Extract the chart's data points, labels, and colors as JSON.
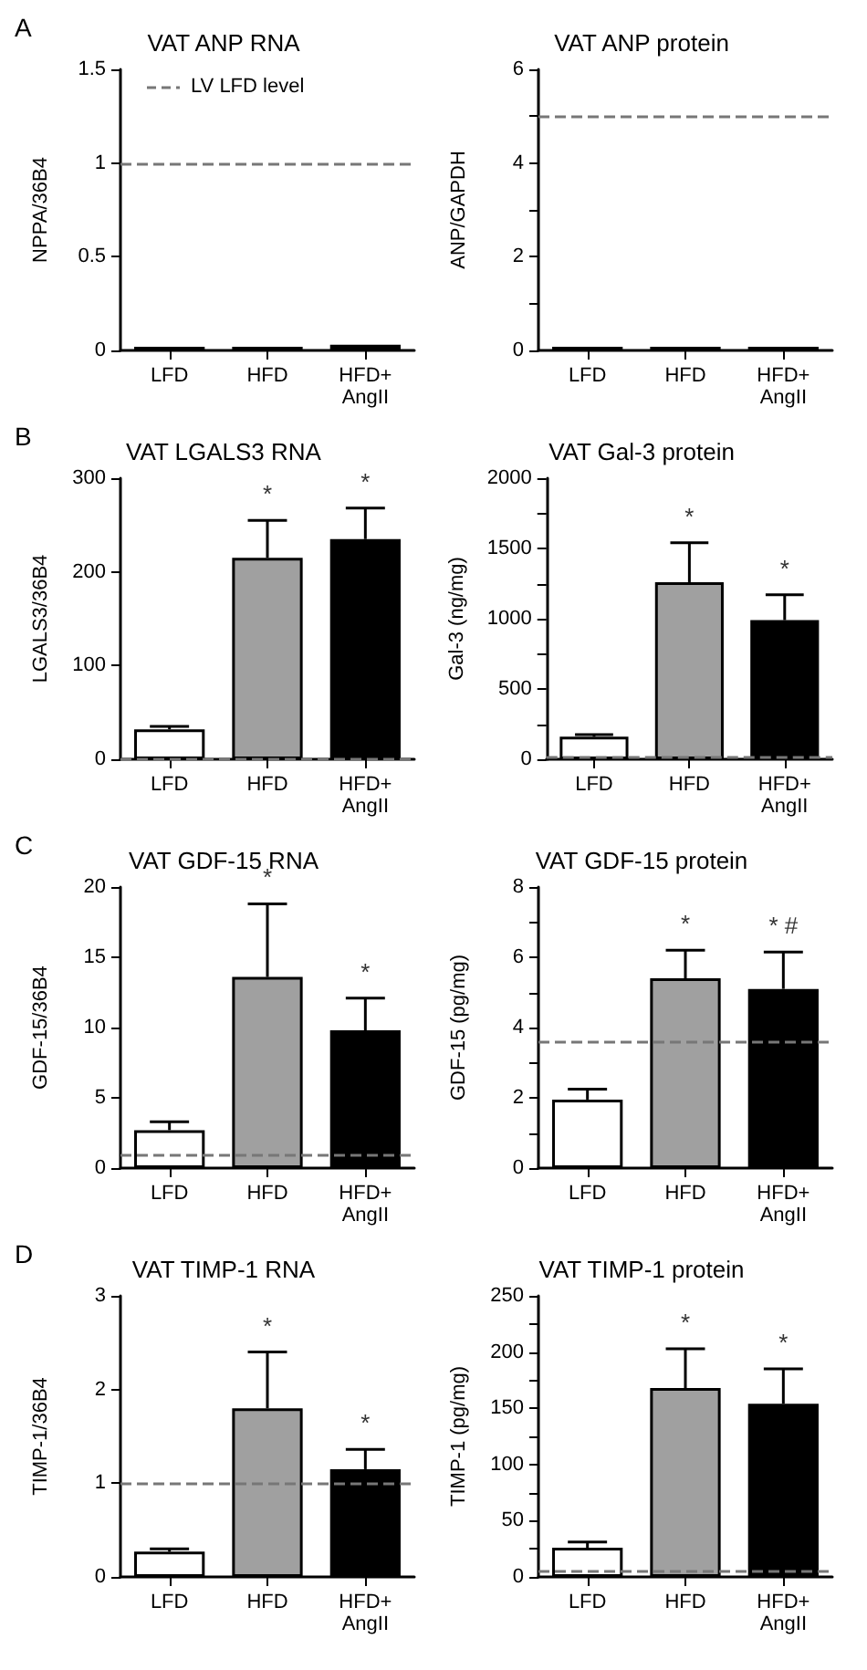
{
  "chart_data": [
    {
      "type": "bar",
      "title": "VAT ANP RNA",
      "ylabel": "NPPA/36B4",
      "categories": [
        "LFD",
        "HFD",
        "HFD+\nAngII"
      ],
      "values": [
        0.02,
        0.02,
        0.03
      ],
      "colors": [
        "#ffffff",
        "#a0a0a0",
        "#000000"
      ],
      "ylim": [
        0,
        1.5
      ],
      "yticks": [
        0,
        0.5,
        1,
        1.5
      ],
      "ref_lines": [
        {
          "axis": "y",
          "value": 1,
          "label": "LV LFD level",
          "color": "#777777",
          "line_style": "dashed"
        }
      ],
      "legend": "top",
      "annotations": [
        "A"
      ]
    },
    {
      "type": "bar",
      "title": "VAT ANP protein",
      "ylabel": "ANP/GAPDH",
      "categories": [
        "LFD",
        "HFD",
        "HFD+\nAngII"
      ],
      "values": [
        0.08,
        0.08,
        0.08
      ],
      "colors": [
        "#ffffff",
        "#a0a0a0",
        "#000000"
      ],
      "ylim": [
        0,
        6
      ],
      "yticks": [
        0,
        {
          "value": 1,
          "label": null
        },
        2,
        {
          "value": 3,
          "label": null
        },
        4,
        {
          "value": 5,
          "label": null
        },
        6
      ],
      "ref_lines": [
        {
          "axis": "y",
          "value": 5,
          "color": "#777777",
          "line_style": "dashed"
        }
      ]
    },
    {
      "type": "bar",
      "title": "VAT LGALS3 RNA",
      "ylabel": "LGALS3/36B4",
      "categories": [
        "LFD",
        "HFD",
        "HFD+\nAngII"
      ],
      "values": [
        32,
        215,
        235
      ],
      "errors": [
        [
          32,
          35
        ],
        [
          215,
          255
        ],
        [
          235,
          268
        ]
      ],
      "colors": [
        "#ffffff",
        "#a0a0a0",
        "#000000"
      ],
      "ylim": [
        0,
        300
      ],
      "yticks": [
        0,
        100,
        200,
        300
      ],
      "ref_lines": [
        {
          "axis": "y",
          "value": 1,
          "color": "#777777",
          "line_style": "dashed"
        }
      ],
      "annotations": [
        "B",
        {
          "text": "*",
          "x": "HFD",
          "y": 255
        },
        {
          "text": "*",
          "x": "HFD+\nAngII",
          "y": 268
        }
      ]
    },
    {
      "type": "bar",
      "title": "VAT Gal-3 protein",
      "ylabel": "Gal-3 (ng/mg)",
      "categories": [
        "LFD",
        "HFD",
        "HFD+\nAngII"
      ],
      "values": [
        160,
        1260,
        990
      ],
      "errors": [
        [
          160,
          175
        ],
        [
          1260,
          1540
        ],
        [
          990,
          1170
        ]
      ],
      "colors": [
        "#ffffff",
        "#a0a0a0",
        "#000000"
      ],
      "ylim": [
        0,
        2000
      ],
      "yticks": [
        0,
        {
          "value": 250,
          "label": null
        },
        500,
        {
          "value": 750,
          "label": null
        },
        1000,
        {
          "value": 1250,
          "label": null
        },
        1500,
        {
          "value": 1750,
          "label": null
        },
        2000
      ],
      "ref_lines": [
        {
          "axis": "y",
          "value": 10,
          "color": "#777777",
          "line_style": "dashed"
        }
      ],
      "annotations": [
        {
          "text": "*",
          "x": "HFD",
          "y": 1540
        },
        {
          "text": "*",
          "x": "HFD+\nAngII",
          "y": 1170
        }
      ]
    },
    {
      "type": "bar",
      "title": "VAT GDF-15 RNA",
      "ylabel": "GDF-15/36B4",
      "categories": [
        "LFD",
        "HFD",
        "HFD+\nAngII"
      ],
      "values": [
        2.7,
        13.6,
        9.8
      ],
      "errors": [
        [
          2.7,
          3.3
        ],
        [
          13.6,
          18.8
        ],
        [
          9.8,
          12.1
        ]
      ],
      "colors": [
        "#ffffff",
        "#a0a0a0",
        "#000000"
      ],
      "ylim": [
        0,
        20
      ],
      "yticks": [
        0,
        5,
        10,
        15,
        20
      ],
      "ref_lines": [
        {
          "axis": "y",
          "value": 1,
          "color": "#777777",
          "line_style": "dashed"
        }
      ],
      "annotations": [
        "C",
        {
          "text": "*",
          "x": "HFD",
          "y": 18.8
        },
        {
          "text": "*",
          "x": "HFD+\nAngII",
          "y": 12.1
        }
      ]
    },
    {
      "type": "bar",
      "title": "VAT GDF-15 protein",
      "ylabel": "GDF-15 (pg/mg)",
      "categories": [
        "LFD",
        "HFD",
        "HFD+\nAngII"
      ],
      "values": [
        1.95,
        5.4,
        5.1
      ],
      "errors": [
        [
          1.95,
          2.25
        ],
        [
          5.4,
          6.2
        ],
        [
          5.1,
          6.15
        ]
      ],
      "colors": [
        "#ffffff",
        "#a0a0a0",
        "#000000"
      ],
      "ylim": [
        0,
        8
      ],
      "yticks": [
        0,
        {
          "value": 1,
          "label": null
        },
        2,
        {
          "value": 3,
          "label": null
        },
        4,
        {
          "value": 5,
          "label": null
        },
        6,
        {
          "value": 7,
          "label": null
        },
        8
      ],
      "ref_lines": [
        {
          "axis": "y",
          "value": 3.6,
          "color": "#777777",
          "line_style": "dashed"
        }
      ],
      "annotations": [
        {
          "text": "*",
          "x": "HFD",
          "y": 6.2
        },
        {
          "text": "* #",
          "x": "HFD+\nAngII",
          "y": 6.15
        }
      ]
    },
    {
      "type": "bar",
      "title": "VAT TIMP-1 RNA",
      "ylabel": "TIMP-1/36B4",
      "categories": [
        "LFD",
        "HFD",
        "HFD+\nAngII"
      ],
      "values": [
        0.27,
        1.8,
        1.15
      ],
      "errors": [
        [
          0.27,
          0.3
        ],
        [
          1.8,
          2.4
        ],
        [
          1.15,
          1.36
        ]
      ],
      "colors": [
        "#ffffff",
        "#a0a0a0",
        "#000000"
      ],
      "ylim": [
        0,
        3
      ],
      "yticks": [
        0,
        1,
        2,
        3
      ],
      "ref_lines": [
        {
          "axis": "y",
          "value": 1,
          "color": "#777777",
          "line_style": "dashed"
        }
      ],
      "annotations": [
        "D",
        {
          "text": "*",
          "x": "HFD",
          "y": 2.4
        },
        {
          "text": "*",
          "x": "HFD+\nAngII",
          "y": 1.36
        }
      ]
    },
    {
      "type": "bar",
      "title": "VAT TIMP-1 protein",
      "ylabel": "TIMP-1 (pg/mg)",
      "categories": [
        "LFD",
        "HFD",
        "HFD+\nAngII"
      ],
      "values": [
        26,
        168,
        154
      ],
      "errors": [
        [
          26,
          31
        ],
        [
          168,
          203
        ],
        [
          154,
          185
        ]
      ],
      "colors": [
        "#ffffff",
        "#a0a0a0",
        "#000000"
      ],
      "ylim": [
        0,
        250
      ],
      "yticks": [
        0,
        {
          "value": 25,
          "label": null
        },
        50,
        {
          "value": 75,
          "label": null
        },
        100,
        {
          "value": 125,
          "label": null
        },
        150,
        {
          "value": 175,
          "label": null
        },
        200,
        {
          "value": 225,
          "label": null
        },
        250
      ],
      "ref_lines": [
        {
          "axis": "y",
          "value": 5,
          "color": "#777777",
          "line_style": "dashed"
        }
      ],
      "annotations": [
        {
          "text": "*",
          "x": "HFD",
          "y": 203
        },
        {
          "text": "*",
          "x": "HFD+\nAngII",
          "y": 185
        }
      ]
    }
  ]
}
